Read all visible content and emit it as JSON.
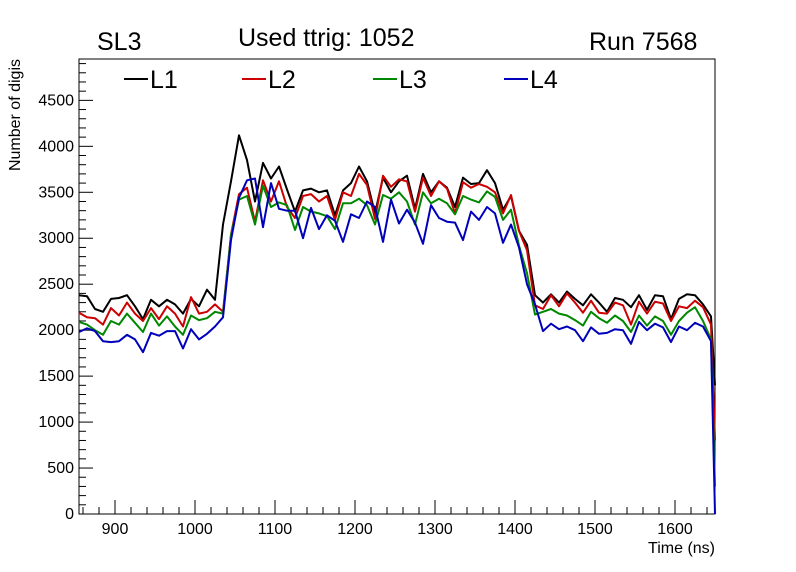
{
  "header": {
    "left": "SL3",
    "center": "Used ttrig: 1052",
    "right": "Run 7568"
  },
  "chart_data": {
    "type": "line",
    "title": "Used ttrig: 1052",
    "xlabel": "Time (ns)",
    "ylabel": "Number of digis",
    "xlim": [
      855,
      1650
    ],
    "ylim": [
      0,
      4950
    ],
    "x_ticks": [
      900,
      1000,
      1100,
      1200,
      1300,
      1400,
      1500,
      1600
    ],
    "y_ticks": [
      0,
      500,
      1000,
      1500,
      2000,
      2500,
      3000,
      3500,
      4000,
      4500
    ],
    "grid": false,
    "legend": "top",
    "x": [
      855,
      865,
      875,
      885,
      895,
      905,
      915,
      925,
      935,
      945,
      955,
      965,
      975,
      985,
      995,
      1005,
      1015,
      1025,
      1035,
      1045,
      1055,
      1065,
      1075,
      1085,
      1095,
      1105,
      1115,
      1125,
      1135,
      1145,
      1155,
      1165,
      1175,
      1185,
      1195,
      1205,
      1215,
      1225,
      1235,
      1245,
      1255,
      1265,
      1275,
      1285,
      1295,
      1305,
      1315,
      1325,
      1335,
      1345,
      1355,
      1365,
      1375,
      1385,
      1395,
      1405,
      1415,
      1425,
      1435,
      1445,
      1455,
      1465,
      1475,
      1485,
      1495,
      1505,
      1515,
      1525,
      1535,
      1545,
      1555,
      1565,
      1575,
      1585,
      1595,
      1605,
      1615,
      1625,
      1635,
      1645,
      1650
    ],
    "series": [
      {
        "name": "L1",
        "color": "#000000",
        "values": [
          2380,
          2370,
          2230,
          2200,
          2340,
          2350,
          2380,
          2260,
          2120,
          2330,
          2260,
          2330,
          2280,
          2180,
          2340,
          2260,
          2440,
          2330,
          3150,
          3620,
          4120,
          3850,
          3400,
          3820,
          3650,
          3780,
          3530,
          3290,
          3520,
          3540,
          3500,
          3520,
          3250,
          3520,
          3600,
          3780,
          3620,
          3270,
          3660,
          3500,
          3620,
          3680,
          3320,
          3700,
          3500,
          3620,
          3550,
          3340,
          3660,
          3590,
          3600,
          3740,
          3600,
          3310,
          3460,
          3080,
          2930,
          2380,
          2300,
          2390,
          2300,
          2420,
          2340,
          2270,
          2390,
          2300,
          2200,
          2350,
          2330,
          2250,
          2380,
          2220,
          2380,
          2370,
          2120,
          2340,
          2390,
          2380,
          2280,
          2150,
          1400
        ]
      },
      {
        "name": "L2",
        "color": "#cc0000",
        "values": [
          2190,
          2140,
          2130,
          2060,
          2240,
          2160,
          2300,
          2180,
          2100,
          2240,
          2120,
          2260,
          2180,
          2040,
          2360,
          2180,
          2200,
          2280,
          2200,
          3040,
          3480,
          3550,
          3180,
          3630,
          3400,
          3620,
          3340,
          3220,
          3460,
          3480,
          3400,
          3460,
          3200,
          3500,
          3460,
          3700,
          3580,
          3210,
          3680,
          3560,
          3640,
          3620,
          3290,
          3660,
          3460,
          3620,
          3540,
          3270,
          3610,
          3550,
          3590,
          3560,
          3500,
          3270,
          3470,
          3080,
          2870,
          2270,
          2230,
          2380,
          2260,
          2400,
          2300,
          2190,
          2320,
          2190,
          2180,
          2300,
          2270,
          2060,
          2310,
          2180,
          2310,
          2290,
          2100,
          2260,
          2240,
          2320,
          2250,
          2060,
          800
        ]
      },
      {
        "name": "L3",
        "color": "#008800",
        "values": [
          2090,
          2060,
          2000,
          1950,
          2100,
          2060,
          2180,
          2080,
          1980,
          2180,
          2050,
          2150,
          2040,
          1950,
          2160,
          2110,
          2130,
          2200,
          2180,
          3030,
          3420,
          3460,
          3150,
          3570,
          3340,
          3390,
          3360,
          3090,
          3340,
          3290,
          3270,
          3240,
          3100,
          3380,
          3380,
          3430,
          3360,
          3150,
          3470,
          3430,
          3500,
          3400,
          3150,
          3500,
          3380,
          3430,
          3380,
          3260,
          3460,
          3420,
          3390,
          3510,
          3450,
          3200,
          3310,
          2920,
          2620,
          2170,
          2200,
          2230,
          2180,
          2160,
          2110,
          2050,
          2200,
          2130,
          2080,
          2160,
          2100,
          1980,
          2160,
          2050,
          2150,
          2100,
          1950,
          2100,
          2190,
          2250,
          2100,
          1900,
          300
        ]
      },
      {
        "name": "L4",
        "color": "#0000bb",
        "values": [
          1980,
          2020,
          1990,
          1880,
          1870,
          1880,
          1950,
          1900,
          1760,
          1970,
          1940,
          1990,
          1990,
          1800,
          2010,
          1900,
          1960,
          2040,
          2140,
          2980,
          3440,
          3630,
          3650,
          3120,
          3600,
          3320,
          3300,
          3300,
          3000,
          3330,
          3100,
          3250,
          3190,
          2960,
          3260,
          3220,
          3400,
          3340,
          2960,
          3420,
          3160,
          3310,
          3170,
          2940,
          3360,
          3220,
          3180,
          3170,
          2980,
          3290,
          3200,
          3340,
          3270,
          2950,
          3150,
          2900,
          2500,
          2280,
          1990,
          2070,
          2010,
          2040,
          2000,
          1880,
          2030,
          1960,
          1970,
          2010,
          2000,
          1850,
          2090,
          2000,
          2070,
          2030,
          1870,
          2040,
          2000,
          2080,
          2040,
          1880,
          0
        ]
      }
    ]
  }
}
